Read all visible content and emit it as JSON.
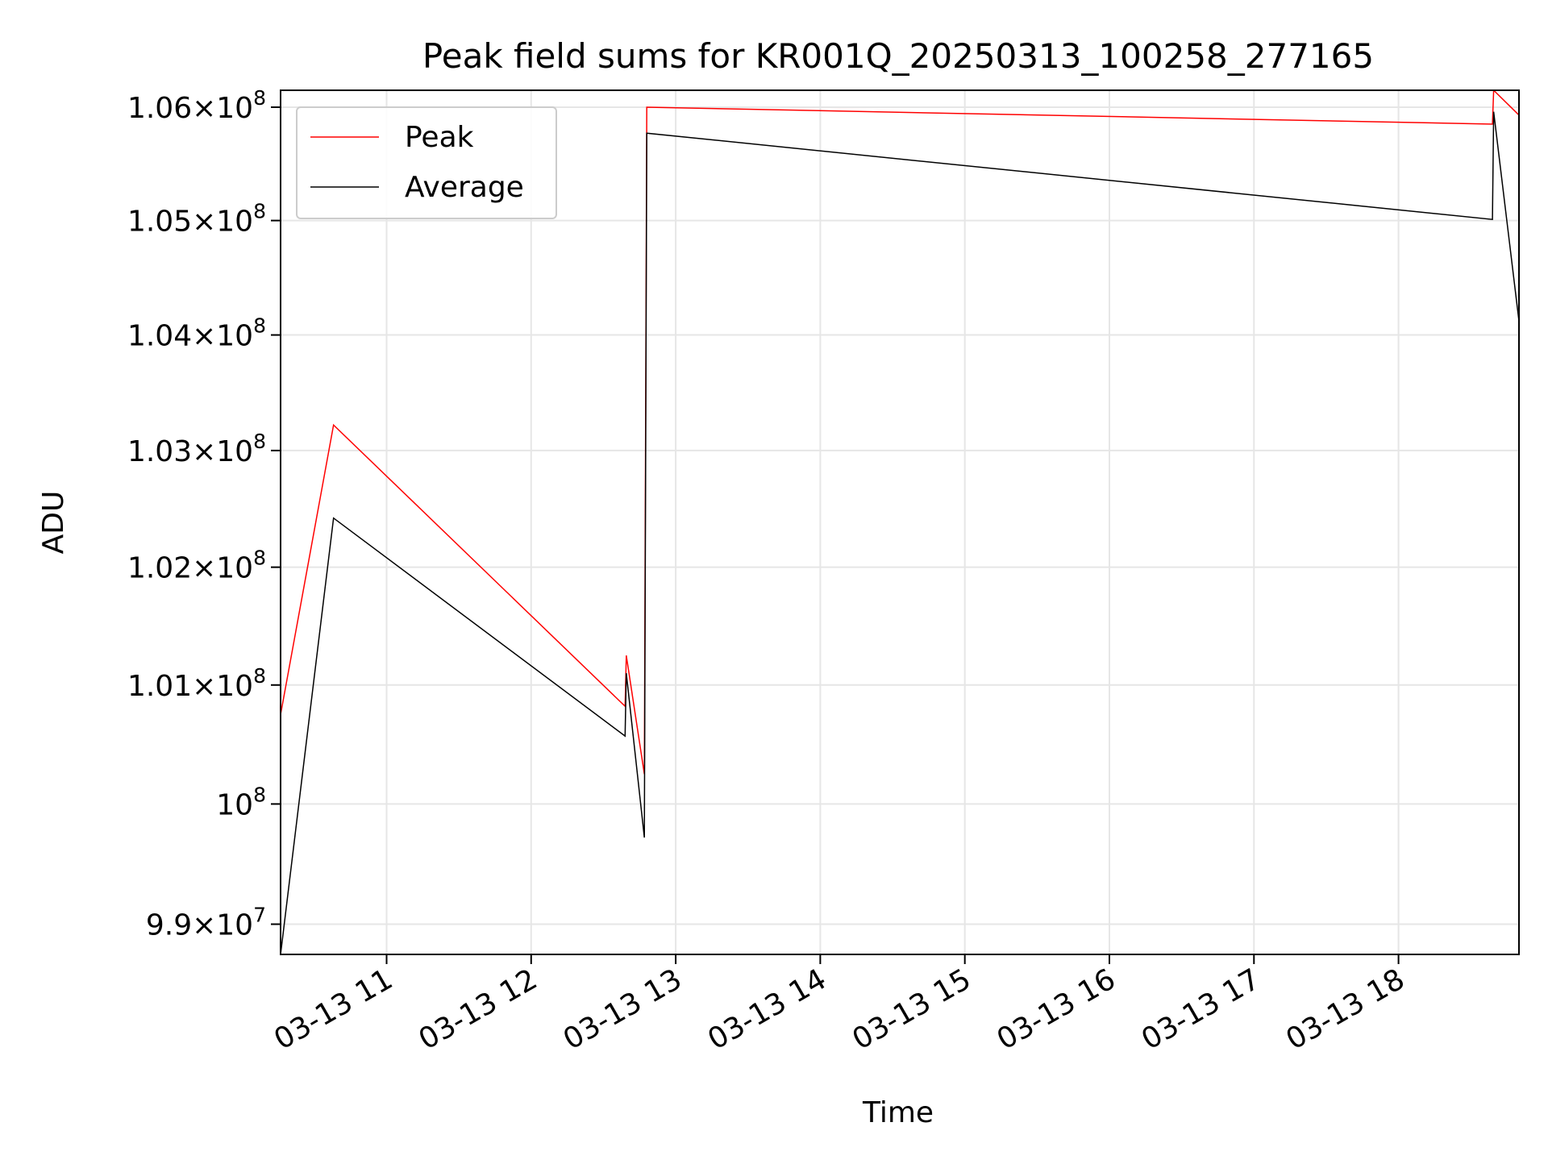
{
  "chart_data": {
    "type": "line",
    "title": "Peak field sums for KR001Q_20250313_100258_277165",
    "xlabel": "Time",
    "ylabel": "ADU",
    "yscale": "log",
    "xlim": [
      "2025-03-13T10:16:00",
      "2025-03-13T18:50:00"
    ],
    "ylim": [
      98750000,
      106150000
    ],
    "grid": true,
    "legend_position": "upper-left",
    "x_ticks": [
      {
        "t": "2025-03-13T11:00:00",
        "label": "03-13 11"
      },
      {
        "t": "2025-03-13T12:00:00",
        "label": "03-13 12"
      },
      {
        "t": "2025-03-13T13:00:00",
        "label": "03-13 13"
      },
      {
        "t": "2025-03-13T14:00:00",
        "label": "03-13 14"
      },
      {
        "t": "2025-03-13T15:00:00",
        "label": "03-13 15"
      },
      {
        "t": "2025-03-13T16:00:00",
        "label": "03-13 16"
      },
      {
        "t": "2025-03-13T17:00:00",
        "label": "03-13 17"
      },
      {
        "t": "2025-03-13T18:00:00",
        "label": "03-13 18"
      }
    ],
    "y_ticks": [
      {
        "value": 99000000,
        "mantissa": "9.9",
        "exponent": "7"
      },
      {
        "value": 100000000,
        "mantissa": "",
        "exponent": "8"
      },
      {
        "value": 101000000,
        "mantissa": "1.01",
        "exponent": "8"
      },
      {
        "value": 102000000,
        "mantissa": "1.02",
        "exponent": "8"
      },
      {
        "value": 103000000,
        "mantissa": "1.03",
        "exponent": "8"
      },
      {
        "value": 104000000,
        "mantissa": "1.04",
        "exponent": "8"
      },
      {
        "value": 105000000,
        "mantissa": "1.05",
        "exponent": "8"
      },
      {
        "value": 106000000,
        "mantissa": "1.06",
        "exponent": "8"
      }
    ],
    "series": [
      {
        "name": "Peak",
        "color": "#ff0000",
        "points": [
          {
            "t": "2025-03-13T10:16:00",
            "y": 100750000
          },
          {
            "t": "2025-03-13T10:38:00",
            "y": 103220000
          },
          {
            "t": "2025-03-13T12:39:00",
            "y": 100820000
          },
          {
            "t": "2025-03-13T12:39:30",
            "y": 101250000
          },
          {
            "t": "2025-03-13T12:47:00",
            "y": 100250000
          },
          {
            "t": "2025-03-13T12:48:00",
            "y": 106000000
          },
          {
            "t": "2025-03-13T18:39:00",
            "y": 105850000
          },
          {
            "t": "2025-03-13T18:39:30",
            "y": 106150000
          },
          {
            "t": "2025-03-13T18:50:00",
            "y": 105930000
          }
        ]
      },
      {
        "name": "Average",
        "color": "#000000",
        "points": [
          {
            "t": "2025-03-13T10:16:00",
            "y": 98750000
          },
          {
            "t": "2025-03-13T10:38:00",
            "y": 102420000
          },
          {
            "t": "2025-03-13T12:39:00",
            "y": 100570000
          },
          {
            "t": "2025-03-13T12:39:30",
            "y": 101100000
          },
          {
            "t": "2025-03-13T12:47:00",
            "y": 99720000
          },
          {
            "t": "2025-03-13T12:48:00",
            "y": 105770000
          },
          {
            "t": "2025-03-13T18:39:00",
            "y": 105010000
          },
          {
            "t": "2025-03-13T18:39:30",
            "y": 105960000
          },
          {
            "t": "2025-03-13T18:50:00",
            "y": 104120000
          }
        ]
      }
    ]
  }
}
